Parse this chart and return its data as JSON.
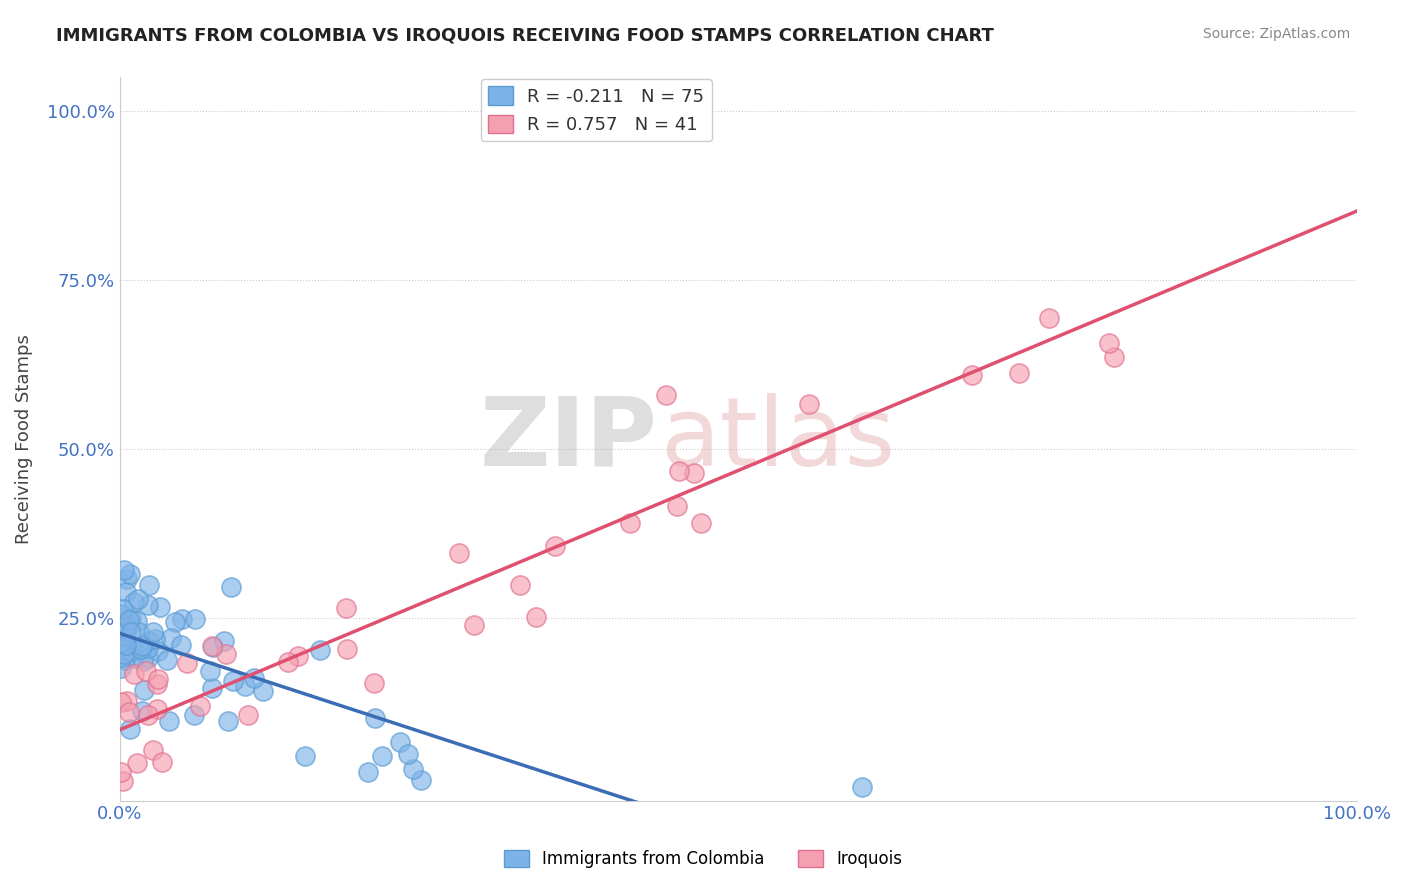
{
  "title": "IMMIGRANTS FROM COLOMBIA VS IROQUOIS RECEIVING FOOD STAMPS CORRELATION CHART",
  "source": "Source: ZipAtlas.com",
  "ylabel": "Receiving Food Stamps",
  "colombia_color": "#7EB3E8",
  "colombia_edge": "#5A9BD4",
  "iroquois_color": "#F5A0B0",
  "iroquois_edge": "#E07090",
  "colombia_R": -0.211,
  "colombia_N": 75,
  "iroquois_R": 0.757,
  "iroquois_N": 41,
  "colombia_line_color": "#3B6DB5",
  "iroquois_line_color": "#E05070",
  "watermark_zip": "ZIP",
  "watermark_atlas": "atlas",
  "background_color": "#FFFFFF",
  "grid_color": "#CCCCCC",
  "legend_label1": "Immigrants from Colombia",
  "legend_label2": "Iroquois",
  "tick_color": "#4472C4",
  "title_color": "#222222",
  "source_color": "#888888",
  "ylabel_color": "#444444"
}
